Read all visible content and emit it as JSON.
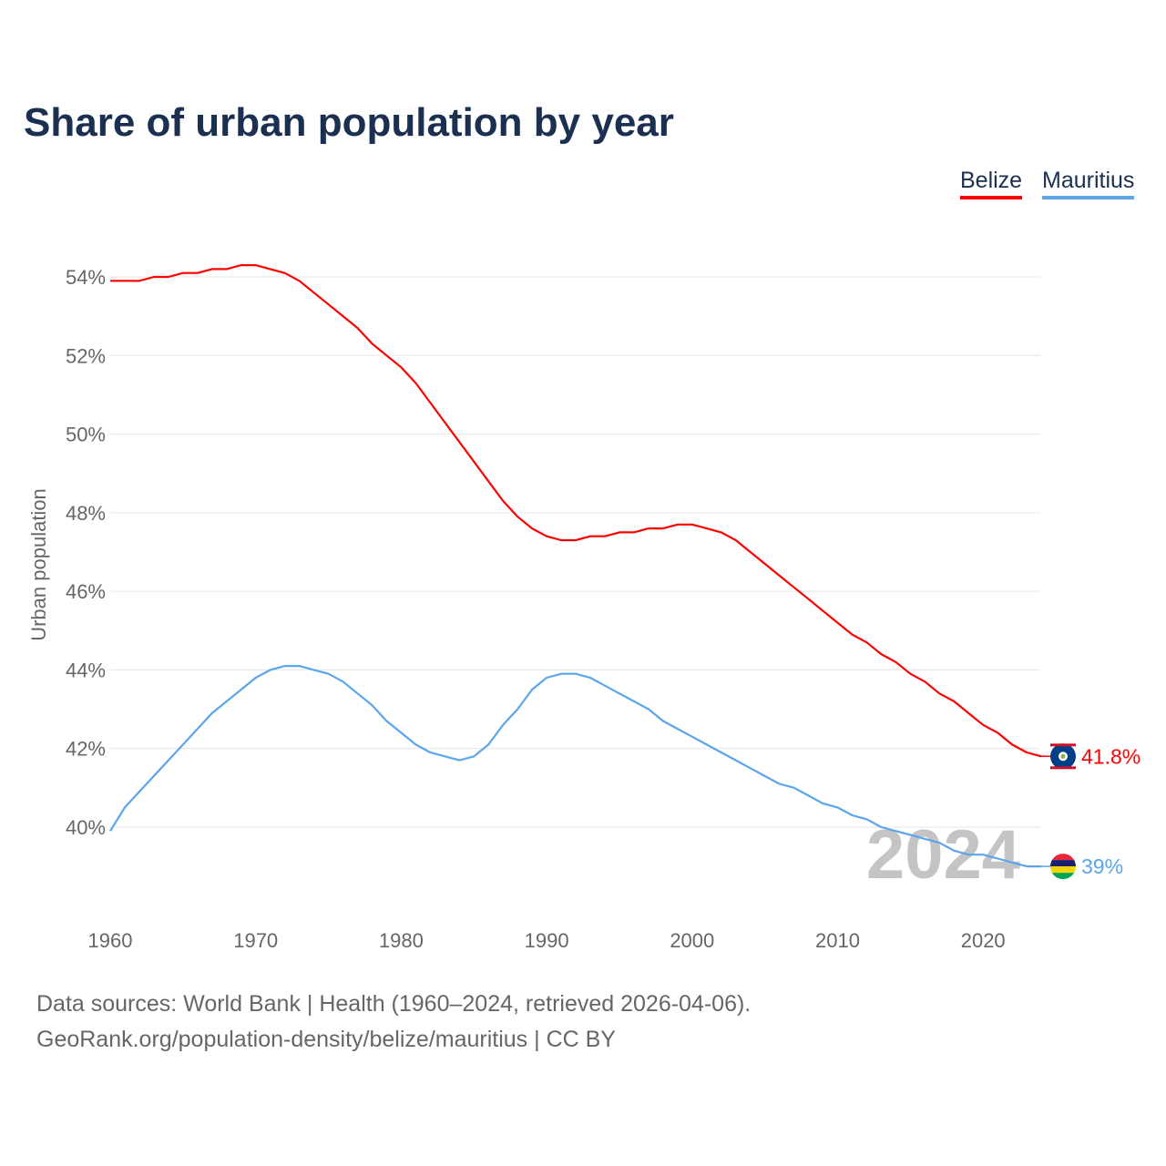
{
  "chart_data": {
    "type": "line",
    "title": "Share of urban population by year",
    "xlabel": "",
    "ylabel": "Urban population",
    "xlim": [
      1960,
      2024
    ],
    "ylim": [
      38,
      55
    ],
    "grid": true,
    "legend_placement": "top-right",
    "x_ticks": [
      "1960",
      "1970",
      "1980",
      "1990",
      "2000",
      "2010",
      "2020"
    ],
    "y_ticks": [
      "40%",
      "42%",
      "44%",
      "46%",
      "48%",
      "50%",
      "52%",
      "54%"
    ],
    "year_watermark": "2024",
    "x": [
      1960,
      1961,
      1962,
      1963,
      1964,
      1965,
      1966,
      1967,
      1968,
      1969,
      1970,
      1971,
      1972,
      1973,
      1974,
      1975,
      1976,
      1977,
      1978,
      1979,
      1980,
      1981,
      1982,
      1983,
      1984,
      1985,
      1986,
      1987,
      1988,
      1989,
      1990,
      1991,
      1992,
      1993,
      1994,
      1995,
      1996,
      1997,
      1998,
      1999,
      2000,
      2001,
      2002,
      2003,
      2004,
      2005,
      2006,
      2007,
      2008,
      2009,
      2010,
      2011,
      2012,
      2013,
      2014,
      2015,
      2016,
      2017,
      2018,
      2019,
      2020,
      2021,
      2022,
      2023,
      2024
    ],
    "series": [
      {
        "name": "Belize",
        "color": "#ff0000",
        "end_label": "41.8%",
        "values": [
          53.9,
          53.9,
          53.9,
          54.0,
          54.0,
          54.1,
          54.1,
          54.2,
          54.2,
          54.3,
          54.3,
          54.2,
          54.1,
          53.9,
          53.6,
          53.3,
          53.0,
          52.7,
          52.3,
          52.0,
          51.7,
          51.3,
          50.8,
          50.3,
          49.8,
          49.3,
          48.8,
          48.3,
          47.9,
          47.6,
          47.4,
          47.3,
          47.3,
          47.4,
          47.4,
          47.5,
          47.5,
          47.6,
          47.6,
          47.7,
          47.7,
          47.6,
          47.5,
          47.3,
          47.0,
          46.7,
          46.4,
          46.1,
          45.8,
          45.5,
          45.2,
          44.9,
          44.7,
          44.4,
          44.2,
          43.9,
          43.7,
          43.4,
          43.2,
          42.9,
          42.6,
          42.4,
          42.1,
          41.9,
          41.8
        ]
      },
      {
        "name": "Mauritius",
        "color": "#5aa5ec",
        "end_label": "39%",
        "values": [
          39.9,
          40.5,
          40.9,
          41.3,
          41.7,
          42.1,
          42.5,
          42.9,
          43.2,
          43.5,
          43.8,
          44.0,
          44.1,
          44.1,
          44.0,
          43.9,
          43.7,
          43.4,
          43.1,
          42.7,
          42.4,
          42.1,
          41.9,
          41.8,
          41.7,
          41.8,
          42.1,
          42.6,
          43.0,
          43.5,
          43.8,
          43.9,
          43.9,
          43.8,
          43.6,
          43.4,
          43.2,
          43.0,
          42.7,
          42.5,
          42.3,
          42.1,
          41.9,
          41.7,
          41.5,
          41.3,
          41.1,
          41.0,
          40.8,
          40.6,
          40.5,
          40.3,
          40.2,
          40.0,
          39.9,
          39.8,
          39.7,
          39.6,
          39.4,
          39.3,
          39.3,
          39.2,
          39.1,
          39.0,
          39.0
        ]
      }
    ]
  },
  "footer": {
    "source_line": "Data sources: World Bank | Health (1960–2024, retrieved 2026-04-06).",
    "attribution_line": "GeoRank.org/population-density/belize/mauritius | CC BY"
  }
}
